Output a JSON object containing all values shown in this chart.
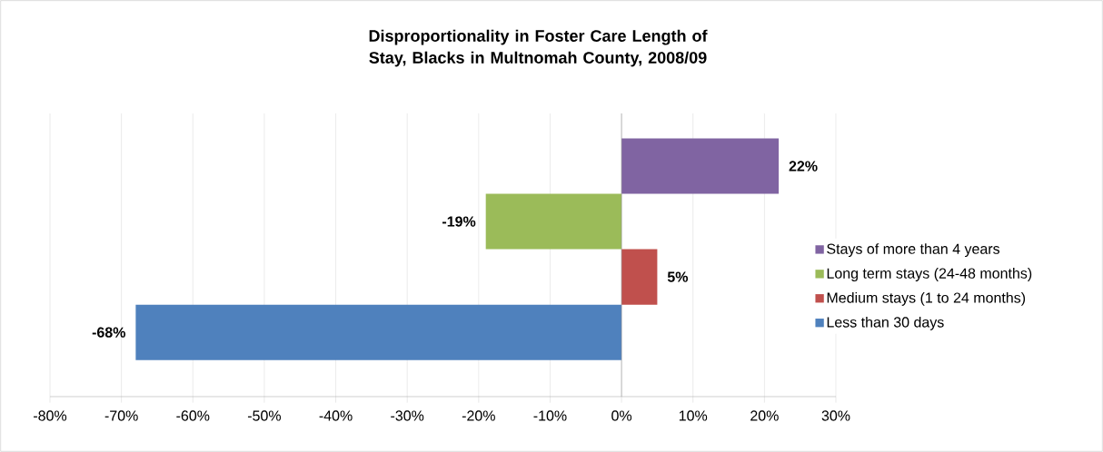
{
  "chart_data": {
    "type": "bar",
    "orientation": "horizontal",
    "title": "Disproportionality in Foster Care Length of Stay, Blacks in Multnomah County, 2008/09",
    "categories": [
      null
    ],
    "series": [
      {
        "name": "Stays of more than 4 years",
        "color": "#8064a2",
        "values": [
          22
        ],
        "value_labels": [
          "22%"
        ]
      },
      {
        "name": "Long term stays (24-48 months)",
        "color": "#9bbb59",
        "values": [
          -19
        ],
        "value_labels": [
          "-19%"
        ]
      },
      {
        "name": "Medium stays (1 to 24 months)",
        "color": "#c0504d",
        "values": [
          5
        ],
        "value_labels": [
          "5%"
        ]
      },
      {
        "name": "Less than 30 days",
        "color": "#4f81bd",
        "values": [
          -68
        ],
        "value_labels": [
          "-68%"
        ]
      }
    ],
    "xlim": [
      -80,
      30
    ],
    "xticks": [
      {
        "value": -80,
        "label": "-80%"
      },
      {
        "value": -70,
        "label": "-70%"
      },
      {
        "value": -60,
        "label": "-60%"
      },
      {
        "value": -50,
        "label": "-50%"
      },
      {
        "value": -40,
        "label": "-40%"
      },
      {
        "value": -30,
        "label": "-30%"
      },
      {
        "value": -20,
        "label": "-20%"
      },
      {
        "value": -10,
        "label": "-10%"
      },
      {
        "value": 0,
        "label": "0%"
      },
      {
        "value": 10,
        "label": "10%"
      },
      {
        "value": 20,
        "label": "20%"
      },
      {
        "value": 30,
        "label": "30%"
      }
    ],
    "grid": "x",
    "legend": "right"
  }
}
